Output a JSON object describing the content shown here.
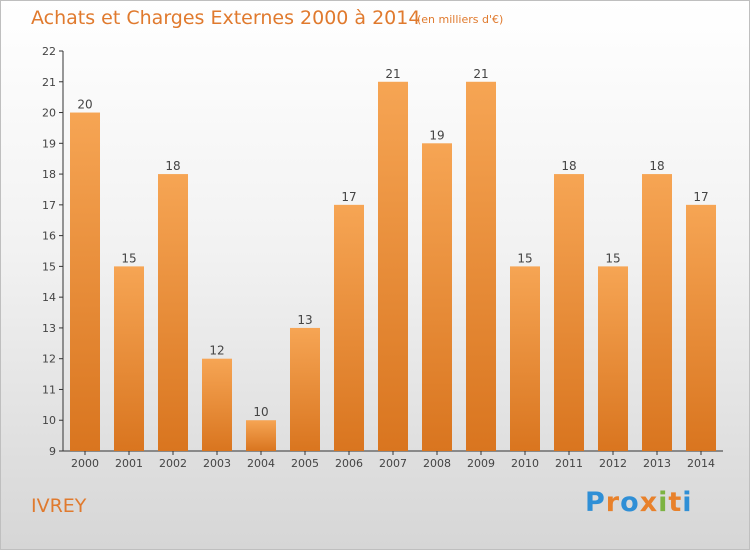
{
  "title": "Achats et Charges Externes 2000 à 2014",
  "unit_note": "(en milliers d'€)",
  "city": "IVREY",
  "brand": {
    "letters": [
      "P",
      "r",
      "o",
      "x",
      "i",
      "t",
      "i"
    ],
    "colors": [
      "#2f8fd6",
      "#e8812b",
      "#2f8fd6",
      "#e8812b",
      "#7cb342",
      "#e8812b",
      "#2f8fd6"
    ]
  },
  "colors": {
    "bar_top": "#f6a554",
    "bar_bottom": "#d9751f",
    "title": "#e07a2e"
  },
  "chart_data": {
    "type": "bar",
    "categories": [
      "2000",
      "2001",
      "2002",
      "2003",
      "2004",
      "2005",
      "2006",
      "2007",
      "2008",
      "2009",
      "2010",
      "2011",
      "2012",
      "2013",
      "2014"
    ],
    "values": [
      20,
      15,
      18,
      12,
      10,
      13,
      17,
      21,
      19,
      21,
      15,
      18,
      15,
      18,
      17
    ],
    "ylim": [
      9,
      22
    ],
    "yticks": [
      9,
      10,
      11,
      12,
      13,
      14,
      15,
      16,
      17,
      18,
      19,
      20,
      21,
      22
    ],
    "grid": false
  }
}
